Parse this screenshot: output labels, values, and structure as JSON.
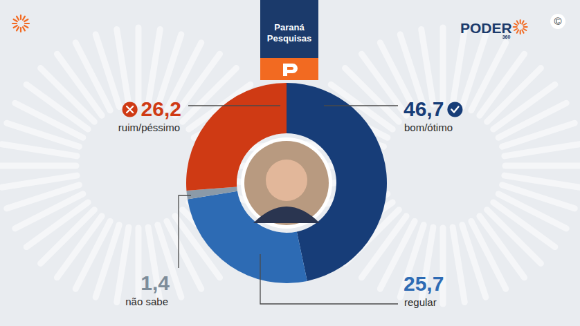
{
  "chart_data": {
    "type": "donut",
    "title": "Paraná Pesquisas",
    "annotations": [
      "PODER",
      "360",
      "©"
    ],
    "categories": [
      "bom/ótimo",
      "regular",
      "não sabe",
      "ruim/péssimo"
    ],
    "values": [
      46.7,
      25.7,
      1.4,
      26.2
    ],
    "value_labels": [
      "46,7",
      "25,7",
      "1,4",
      "26,2"
    ],
    "colors": [
      "#173d78",
      "#2d6bb4",
      "#8b9aa8",
      "#cf3a14"
    ],
    "data_labels": true
  }
}
